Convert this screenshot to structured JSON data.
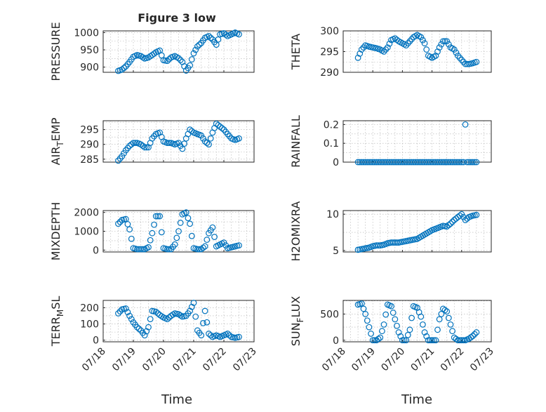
{
  "figure": {
    "title": "Figure 3 low",
    "xlabel": "Time",
    "date_ticks": [
      "07/18",
      "07/19",
      "07/20",
      "07/21",
      "07/22",
      "07/23"
    ],
    "marker_color": "#0072bd"
  },
  "chart_data": [
    {
      "id": "pressure",
      "type": "scatter",
      "ylabel": "PRESSURE",
      "ylabel_sub": "",
      "xlim": [
        "07/18",
        "07/23"
      ],
      "ylim": [
        885,
        1005
      ],
      "yticks": [
        900,
        950,
        1000
      ],
      "x": [
        "07/18 12:00",
        "07/18 15:00",
        "07/18 18:00",
        "07/18 21:00",
        "07/19 00:00",
        "07/19 03:00",
        "07/19 06:00",
        "07/19 09:00",
        "07/19 12:00",
        "07/19 15:00",
        "07/19 18:00",
        "07/19 21:00",
        "07/20 00:00",
        "07/20 03:00",
        "07/20 06:00",
        "07/20 09:00",
        "07/20 12:00",
        "07/20 15:00",
        "07/20 18:00",
        "07/20 21:00",
        "07/21 00:00",
        "07/21 03:00",
        "07/21 06:00",
        "07/21 09:00",
        "07/21 12:00",
        "07/21 15:00",
        "07/21 18:00",
        "07/21 21:00",
        "07/22 00:00",
        "07/22 03:00",
        "07/22 06:00",
        "07/22 09:00",
        "07/22 12:00"
      ],
      "y": [
        889,
        893,
        902,
        915,
        930,
        935,
        932,
        925,
        928,
        935,
        943,
        948,
        920,
        918,
        928,
        932,
        926,
        915,
        890,
        905,
        940,
        960,
        970,
        985,
        990,
        980,
        965,
        995,
        998,
        990,
        995,
        1000,
        995
      ]
    },
    {
      "id": "theta",
      "type": "scatter",
      "ylabel": "THETA",
      "ylabel_sub": "",
      "xlim": [
        "07/18",
        "07/23"
      ],
      "ylim": [
        290,
        300
      ],
      "yticks": [
        290,
        295,
        300
      ],
      "x": [
        "07/18 12:00",
        "07/18 15:00",
        "07/18 18:00",
        "07/18 21:00",
        "07/19 00:00",
        "07/19 03:00",
        "07/19 06:00",
        "07/19 09:00",
        "07/19 12:00",
        "07/19 15:00",
        "07/19 18:00",
        "07/19 21:00",
        "07/20 00:00",
        "07/20 03:00",
        "07/20 06:00",
        "07/20 09:00",
        "07/20 12:00",
        "07/20 15:00",
        "07/20 18:00",
        "07/20 21:00",
        "07/21 00:00",
        "07/21 03:00",
        "07/21 06:00",
        "07/21 09:00",
        "07/21 12:00",
        "07/21 15:00",
        "07/21 18:00",
        "07/21 21:00",
        "07/22 00:00",
        "07/22 03:00",
        "07/22 06:00",
        "07/22 09:00",
        "07/22 12:00"
      ],
      "y": [
        293.5,
        295.5,
        296.5,
        296.2,
        296,
        295.8,
        295.5,
        295,
        296,
        297.8,
        298.2,
        297.5,
        297,
        296.5,
        297.5,
        298.5,
        299,
        298.5,
        297,
        294,
        293.5,
        294,
        296,
        297.5,
        297.5,
        296,
        295.5,
        294,
        293,
        292,
        292,
        292.2,
        292.5
      ]
    },
    {
      "id": "air_temp",
      "type": "scatter",
      "ylabel": "AIR",
      "ylabel_sub": "T",
      "ylabel_suffix": "EMP",
      "xlim": [
        "07/18",
        "07/23"
      ],
      "ylim": [
        284,
        298
      ],
      "yticks": [
        285,
        290,
        295
      ],
      "x": [
        "07/18 12:00",
        "07/18 15:00",
        "07/18 18:00",
        "07/18 21:00",
        "07/19 00:00",
        "07/19 03:00",
        "07/19 06:00",
        "07/19 09:00",
        "07/19 12:00",
        "07/19 15:00",
        "07/19 18:00",
        "07/19 21:00",
        "07/20 00:00",
        "07/20 03:00",
        "07/20 06:00",
        "07/20 09:00",
        "07/20 12:00",
        "07/20 15:00",
        "07/20 18:00",
        "07/20 21:00",
        "07/21 00:00",
        "07/21 03:00",
        "07/21 06:00",
        "07/21 09:00",
        "07/21 12:00",
        "07/21 15:00",
        "07/21 18:00",
        "07/21 21:00",
        "07/22 00:00",
        "07/22 03:00",
        "07/22 06:00",
        "07/22 09:00",
        "07/22 12:00"
      ],
      "y": [
        284.5,
        286,
        288,
        289.5,
        290.5,
        290.5,
        290,
        289,
        289,
        292,
        293.5,
        294,
        291,
        290.5,
        290.5,
        290,
        290.5,
        288.5,
        292,
        295,
        294,
        293.5,
        293,
        291,
        290,
        294,
        297,
        296,
        295,
        293.5,
        292,
        291.5,
        292
      ]
    },
    {
      "id": "rainfall",
      "type": "scatter",
      "ylabel": "RAINFALL",
      "ylabel_sub": "",
      "xlim": [
        "07/18",
        "07/23"
      ],
      "ylim": [
        0,
        0.22
      ],
      "yticks": [
        0,
        0.1,
        0.2
      ],
      "x": [
        "07/18 12:00",
        "07/18 18:00",
        "07/19 00:00",
        "07/19 06:00",
        "07/19 12:00",
        "07/19 18:00",
        "07/20 00:00",
        "07/20 06:00",
        "07/20 12:00",
        "07/20 18:00",
        "07/21 00:00",
        "07/21 06:00",
        "07/21 12:00",
        "07/21 18:00",
        "07/22 00:00",
        "07/22 03:00",
        "07/22 06:00",
        "07/22 09:00",
        "07/22 12:00"
      ],
      "y": [
        0,
        0,
        0,
        0,
        0,
        0,
        0,
        0,
        0,
        0,
        0,
        0,
        0,
        0,
        0,
        0.2,
        0,
        0,
        0
      ]
    },
    {
      "id": "mixdepth",
      "type": "scatter",
      "ylabel": "MIXDEPTH",
      "ylabel_sub": "",
      "xlim": [
        "07/18",
        "07/23"
      ],
      "ylim": [
        -100,
        2100
      ],
      "yticks": [
        0,
        1000,
        2000
      ],
      "x": [
        "07/18 12:00",
        "07/18 15:00",
        "07/18 18:00",
        "07/18 21:00",
        "07/19 00:00",
        "07/19 03:00",
        "07/19 06:00",
        "07/19 09:00",
        "07/19 12:00",
        "07/19 15:00",
        "07/19 18:00",
        "07/19 21:00",
        "07/20 00:00",
        "07/20 03:00",
        "07/20 06:00",
        "07/20 09:00",
        "07/20 12:00",
        "07/20 15:00",
        "07/20 18:00",
        "07/20 21:00",
        "07/21 00:00",
        "07/21 03:00",
        "07/21 06:00",
        "07/21 09:00",
        "07/21 12:00",
        "07/21 15:00",
        "07/21 18:00",
        "07/21 21:00",
        "07/22 00:00",
        "07/22 03:00",
        "07/22 06:00",
        "07/22 09:00",
        "07/22 12:00"
      ],
      "y": [
        1400,
        1600,
        1650,
        1100,
        100,
        50,
        50,
        50,
        150,
        900,
        1800,
        1800,
        100,
        50,
        50,
        300,
        1000,
        1900,
        2000,
        1400,
        100,
        50,
        50,
        200,
        900,
        1200,
        200,
        300,
        400,
        100,
        150,
        200,
        250
      ]
    },
    {
      "id": "h2omixra",
      "type": "scatter",
      "ylabel": "H2OMIXRA",
      "ylabel_sub": "",
      "xlim": [
        "07/18",
        "07/23"
      ],
      "ylim": [
        4.8,
        10.5
      ],
      "yticks": [
        5,
        10
      ],
      "x": [
        "07/18 12:00",
        "07/18 15:00",
        "07/18 18:00",
        "07/18 21:00",
        "07/19 00:00",
        "07/19 03:00",
        "07/19 06:00",
        "07/19 09:00",
        "07/19 12:00",
        "07/19 15:00",
        "07/19 18:00",
        "07/19 21:00",
        "07/20 00:00",
        "07/20 03:00",
        "07/20 06:00",
        "07/20 09:00",
        "07/20 12:00",
        "07/20 15:00",
        "07/20 18:00",
        "07/20 21:00",
        "07/21 00:00",
        "07/21 03:00",
        "07/21 06:00",
        "07/21 09:00",
        "07/21 12:00",
        "07/21 15:00",
        "07/21 18:00",
        "07/21 21:00",
        "07/22 00:00",
        "07/22 03:00",
        "07/22 06:00",
        "07/22 09:00",
        "07/22 12:00"
      ],
      "y": [
        5.1,
        5.2,
        5.3,
        5.4,
        5.6,
        5.7,
        5.7,
        5.8,
        6,
        6.1,
        6.1,
        6.1,
        6.2,
        6.3,
        6.4,
        6.5,
        6.6,
        6.9,
        7.2,
        7.5,
        7.8,
        8,
        8.2,
        8.4,
        8.3,
        8.7,
        9.2,
        9.6,
        10,
        9.2,
        9.6,
        9.8,
        9.9
      ]
    },
    {
      "id": "terr_msl",
      "type": "scatter",
      "ylabel": "TERR",
      "ylabel_sub": "M",
      "ylabel_suffix": "SL",
      "xlim": [
        "07/18",
        "07/23"
      ],
      "ylim": [
        -10,
        245
      ],
      "yticks": [
        0,
        100,
        200
      ],
      "x": [
        "07/18 12:00",
        "07/18 15:00",
        "07/18 18:00",
        "07/18 21:00",
        "07/19 00:00",
        "07/19 03:00",
        "07/19 06:00",
        "07/19 09:00",
        "07/19 12:00",
        "07/19 15:00",
        "07/19 18:00",
        "07/19 21:00",
        "07/20 00:00",
        "07/20 03:00",
        "07/20 06:00",
        "07/20 09:00",
        "07/20 12:00",
        "07/20 15:00",
        "07/20 18:00",
        "07/20 21:00",
        "07/21 00:00",
        "07/21 03:00",
        "07/21 06:00",
        "07/21 09:00",
        "07/21 12:00",
        "07/21 15:00",
        "07/21 18:00",
        "07/21 21:00",
        "07/22 00:00",
        "07/22 03:00",
        "07/22 06:00",
        "07/22 09:00",
        "07/22 12:00"
      ],
      "y": [
        165,
        190,
        195,
        150,
        110,
        80,
        60,
        30,
        80,
        180,
        175,
        155,
        140,
        130,
        150,
        165,
        160,
        145,
        150,
        180,
        230,
        60,
        30,
        180,
        40,
        20,
        30,
        20,
        30,
        40,
        20,
        15,
        20
      ]
    },
    {
      "id": "sun_flux",
      "type": "scatter",
      "ylabel": "SUN",
      "ylabel_sub": "F",
      "ylabel_suffix": "LUX",
      "xlim": [
        "07/18",
        "07/23"
      ],
      "ylim": [
        -30,
        760
      ],
      "yticks": [
        0,
        500
      ],
      "x": [
        "07/18 12:00",
        "07/18 15:00",
        "07/18 18:00",
        "07/18 21:00",
        "07/19 00:00",
        "07/19 03:00",
        "07/19 06:00",
        "07/19 09:00",
        "07/19 12:00",
        "07/19 15:00",
        "07/19 18:00",
        "07/19 21:00",
        "07/20 00:00",
        "07/20 03:00",
        "07/20 06:00",
        "07/20 09:00",
        "07/20 12:00",
        "07/20 15:00",
        "07/20 18:00",
        "07/20 21:00",
        "07/21 00:00",
        "07/21 03:00",
        "07/21 06:00",
        "07/21 09:00",
        "07/21 12:00",
        "07/21 15:00",
        "07/21 18:00",
        "07/21 21:00",
        "07/22 00:00",
        "07/22 03:00",
        "07/22 06:00",
        "07/22 09:00",
        "07/22 12:00"
      ],
      "y": [
        680,
        700,
        500,
        250,
        0,
        0,
        50,
        300,
        680,
        650,
        400,
        150,
        0,
        0,
        200,
        650,
        620,
        450,
        150,
        0,
        0,
        0,
        400,
        600,
        550,
        300,
        50,
        0,
        0,
        0,
        30,
        80,
        150
      ]
    }
  ]
}
